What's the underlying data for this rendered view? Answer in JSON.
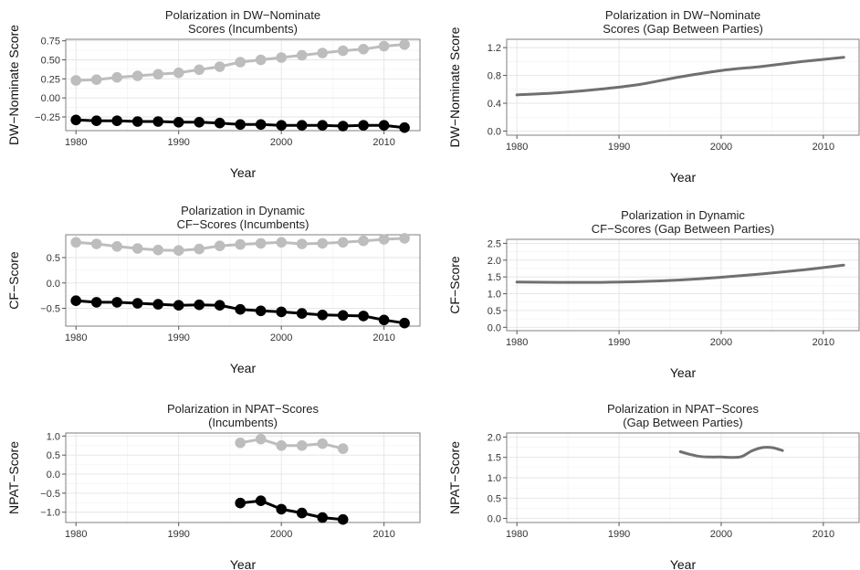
{
  "chart_data": [
    {
      "type": "line",
      "title": "Polarization in DW−Nominate",
      "subtitle": "Scores (Incumbents)",
      "xlabel": "Year",
      "ylabel": "DW−Nominate Score",
      "xlim": [
        1979,
        2013.5
      ],
      "ylim": [
        -0.43,
        0.77
      ],
      "x_ticks": [
        1980,
        1990,
        2000,
        2010
      ],
      "y_ticks": [
        -0.25,
        0.0,
        0.25,
        0.5,
        0.75
      ],
      "y_tick_labels": [
        "−0.25",
        "0.00",
        "0.25",
        "0.50",
        "0.75"
      ],
      "grid": true,
      "series": [
        {
          "color": "#bdbdbd",
          "markers": true,
          "x": [
            1980,
            1982,
            1984,
            1986,
            1988,
            1990,
            1992,
            1994,
            1996,
            1998,
            2000,
            2002,
            2004,
            2006,
            2008,
            2010,
            2012
          ],
          "y": [
            0.23,
            0.24,
            0.27,
            0.29,
            0.31,
            0.33,
            0.37,
            0.41,
            0.47,
            0.5,
            0.53,
            0.56,
            0.59,
            0.62,
            0.64,
            0.68,
            0.7
          ]
        },
        {
          "color": "#000000",
          "markers": true,
          "x": [
            1980,
            1982,
            1984,
            1986,
            1988,
            1990,
            1992,
            1994,
            1996,
            1998,
            2000,
            2002,
            2004,
            2006,
            2008,
            2010,
            2012
          ],
          "y": [
            -0.29,
            -0.3,
            -0.3,
            -0.31,
            -0.31,
            -0.32,
            -0.32,
            -0.33,
            -0.35,
            -0.35,
            -0.36,
            -0.36,
            -0.36,
            -0.37,
            -0.36,
            -0.36,
            -0.39
          ]
        }
      ]
    },
    {
      "type": "line",
      "title": "Polarization in DW−Nominate",
      "subtitle": "Scores (Gap Between Parties)",
      "xlabel": "Year",
      "ylabel": "DW−Nominate Score",
      "xlim": [
        1979,
        2013.5
      ],
      "ylim": [
        -0.06,
        1.32
      ],
      "x_ticks": [
        1980,
        1990,
        2000,
        2010
      ],
      "y_ticks": [
        0.0,
        0.4,
        0.8,
        1.2
      ],
      "y_tick_labels": [
        "0.0",
        "0.4",
        "0.8",
        "1.2"
      ],
      "grid": true,
      "series": [
        {
          "color": "#707070",
          "markers": false,
          "x": [
            1980,
            1984,
            1988,
            1992,
            1996,
            2000,
            2004,
            2008,
            2012
          ],
          "y": [
            0.52,
            0.55,
            0.6,
            0.67,
            0.78,
            0.87,
            0.93,
            1.0,
            1.06
          ]
        }
      ]
    },
    {
      "type": "line",
      "title": "Polarization in Dynamic",
      "subtitle": "CF−Scores (Incumbents)",
      "xlabel": "Year",
      "ylabel": "CF−Score",
      "xlim": [
        1979,
        2013.5
      ],
      "ylim": [
        -0.85,
        0.95
      ],
      "x_ticks": [
        1980,
        1990,
        2000,
        2010
      ],
      "y_ticks": [
        -0.5,
        0.0,
        0.5
      ],
      "y_tick_labels": [
        "−0.5",
        "0.0",
        "0.5"
      ],
      "grid": true,
      "series": [
        {
          "color": "#bdbdbd",
          "markers": true,
          "x": [
            1980,
            1982,
            1984,
            1986,
            1988,
            1990,
            1992,
            1994,
            1996,
            1998,
            2000,
            2002,
            2004,
            2006,
            2008,
            2010,
            2012
          ],
          "y": [
            0.8,
            0.77,
            0.72,
            0.68,
            0.65,
            0.64,
            0.67,
            0.73,
            0.76,
            0.78,
            0.8,
            0.77,
            0.78,
            0.8,
            0.83,
            0.86,
            0.88
          ]
        },
        {
          "color": "#000000",
          "markers": true,
          "x": [
            1980,
            1982,
            1984,
            1986,
            1988,
            1990,
            1992,
            1994,
            1996,
            1998,
            2000,
            2002,
            2004,
            2006,
            2008,
            2010,
            2012
          ],
          "y": [
            -0.35,
            -0.38,
            -0.38,
            -0.4,
            -0.42,
            -0.44,
            -0.43,
            -0.44,
            -0.52,
            -0.55,
            -0.57,
            -0.6,
            -0.63,
            -0.64,
            -0.65,
            -0.73,
            -0.79
          ]
        }
      ]
    },
    {
      "type": "line",
      "title": "Polarization in Dynamic",
      "subtitle": "CF−Scores (Gap Between Parties)",
      "xlabel": "Year",
      "ylabel": "CF−Score",
      "xlim": [
        1979,
        2013.5
      ],
      "ylim": [
        -0.1,
        2.62
      ],
      "x_ticks": [
        1980,
        1990,
        2000,
        2010
      ],
      "y_ticks": [
        0.0,
        0.5,
        1.0,
        1.5,
        2.0,
        2.5
      ],
      "y_tick_labels": [
        "0.0",
        "0.5",
        "1.0",
        "1.5",
        "2.0",
        "2.5"
      ],
      "grid": true,
      "series": [
        {
          "color": "#707070",
          "markers": false,
          "x": [
            1980,
            1984,
            1988,
            1992,
            1996,
            2000,
            2004,
            2008,
            2012
          ],
          "y": [
            1.35,
            1.34,
            1.34,
            1.36,
            1.41,
            1.49,
            1.59,
            1.71,
            1.85
          ]
        }
      ]
    },
    {
      "type": "line",
      "title": "Polarization in NPAT−Scores",
      "subtitle": "(Incumbents)",
      "xlabel": "Year",
      "ylabel": "NPAT−Score",
      "xlim": [
        1979,
        2013.5
      ],
      "ylim": [
        -1.27,
        1.08
      ],
      "x_ticks": [
        1980,
        1990,
        2000,
        2010
      ],
      "y_ticks": [
        -1.0,
        -0.5,
        0.0,
        0.5,
        1.0
      ],
      "y_tick_labels": [
        "−1.0",
        "−0.5",
        "0.0",
        "0.5",
        "1.0"
      ],
      "grid": true,
      "series": [
        {
          "color": "#bdbdbd",
          "markers": true,
          "x": [
            1996,
            1998,
            2000,
            2002,
            2004,
            2006
          ],
          "y": [
            0.82,
            0.92,
            0.75,
            0.75,
            0.8,
            0.67
          ]
        },
        {
          "color": "#000000",
          "markers": true,
          "x": [
            1996,
            1998,
            2000,
            2002,
            2004,
            2006
          ],
          "y": [
            -0.76,
            -0.7,
            -0.92,
            -1.02,
            -1.14,
            -1.19
          ]
        }
      ]
    },
    {
      "type": "line",
      "title": "Polarization in NPAT−Scores",
      "subtitle": "(Gap Between Parties)",
      "xlabel": "Year",
      "ylabel": "NPAT−Score",
      "xlim": [
        1979,
        2013.5
      ],
      "ylim": [
        -0.1,
        2.1
      ],
      "x_ticks": [
        1980,
        1990,
        2000,
        2010
      ],
      "y_ticks": [
        0.0,
        0.5,
        1.0,
        1.5,
        2.0
      ],
      "y_tick_labels": [
        "0.0",
        "0.5",
        "1.0",
        "1.5",
        "2.0"
      ],
      "grid": true,
      "series": [
        {
          "color": "#707070",
          "markers": false,
          "x": [
            1996,
            1997,
            1998,
            1999,
            2000,
            2001,
            2002,
            2003,
            2004,
            2005,
            2006
          ],
          "y": [
            1.64,
            1.57,
            1.52,
            1.51,
            1.51,
            1.5,
            1.52,
            1.66,
            1.74,
            1.74,
            1.67
          ]
        }
      ]
    }
  ]
}
